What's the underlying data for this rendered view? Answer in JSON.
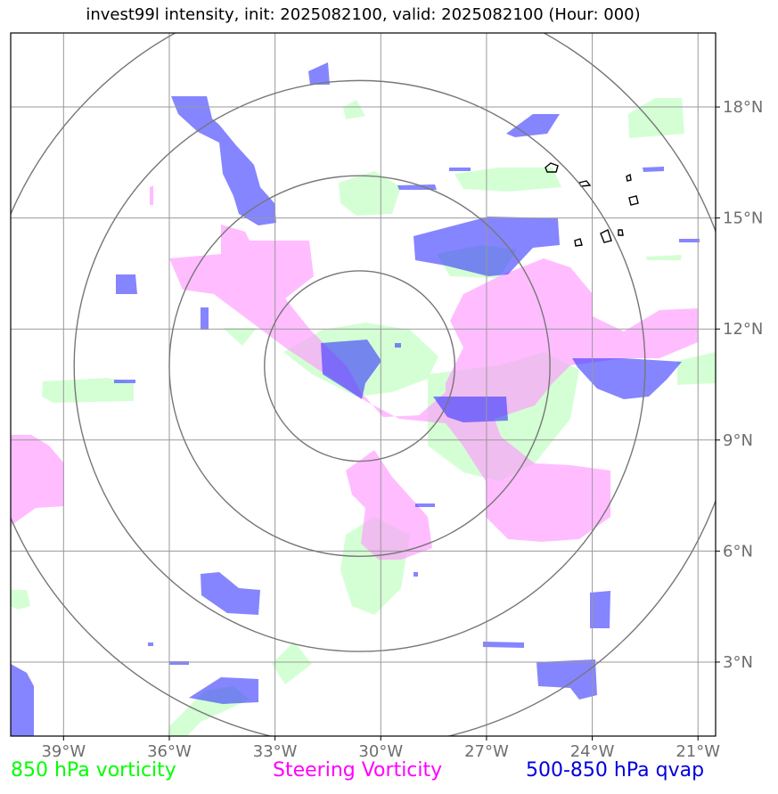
{
  "title": "invest99l intensity, init: 2025082100, valid: 2025082100 (Hour: 000)",
  "colors": {
    "vort850": "#ccffcc",
    "steering": "#ff99ff",
    "qvap": "#3333ff",
    "grid": "#999999",
    "rings": "#777777",
    "tick_text": "#6e6e6e",
    "legend_850": "#00ff00",
    "legend_steering": "#ff00ff",
    "legend_qvap": "#0000dd"
  },
  "map": {
    "lon_range": [
      -40.5,
      -20.5
    ],
    "lat_range": [
      1.0,
      20.0
    ],
    "lon_ticks": [
      {
        "value": -39,
        "label": "39°W"
      },
      {
        "value": -36,
        "label": "36°W"
      },
      {
        "value": -33,
        "label": "33°W"
      },
      {
        "value": -30,
        "label": "30°W"
      },
      {
        "value": -27,
        "label": "27°W"
      },
      {
        "value": -24,
        "label": "24°W"
      },
      {
        "value": -21,
        "label": "21°W"
      }
    ],
    "lat_ticks": [
      {
        "value": 3,
        "label": "3°N"
      },
      {
        "value": 6,
        "label": "6°N"
      },
      {
        "value": 9,
        "label": "9°N"
      },
      {
        "value": 12,
        "label": "12°N"
      },
      {
        "value": 15,
        "label": "15°N"
      },
      {
        "value": 18,
        "label": "18°N"
      }
    ],
    "storm_center": {
      "lon": -30.6,
      "lat": 11.0
    },
    "range_rings_deg": [
      2.7,
      5.4,
      8.1,
      10.8
    ]
  },
  "legend": {
    "vort850": "850 hPa vorticity",
    "steering": "Steering Vorticity",
    "qvap": "500-850 hPa qvap"
  }
}
